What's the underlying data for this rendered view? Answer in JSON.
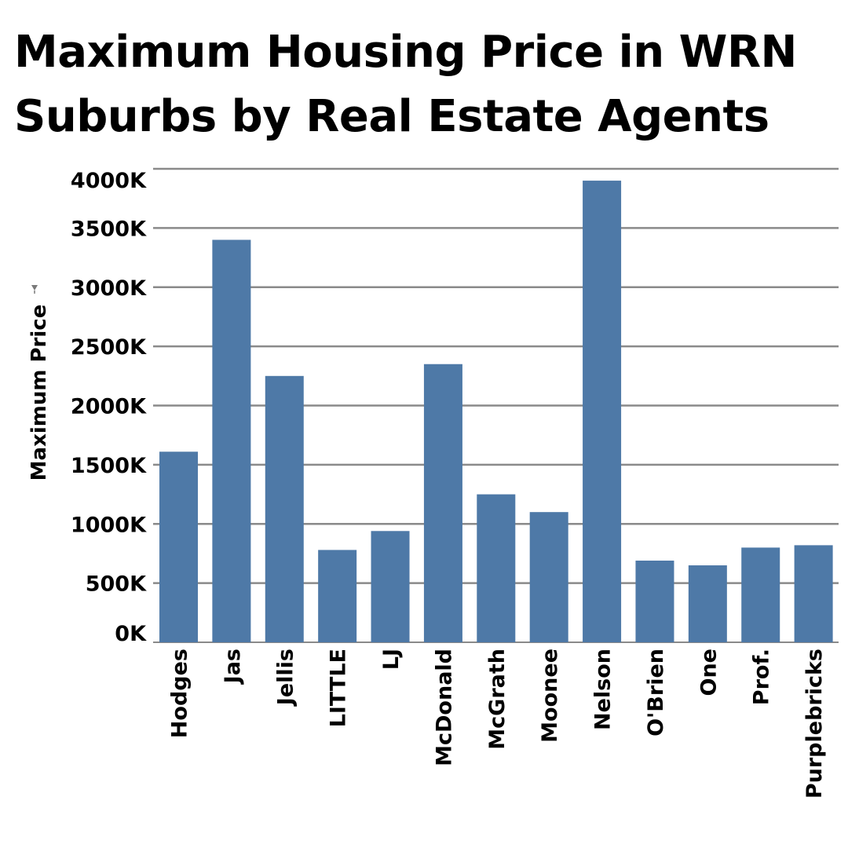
{
  "chart_data": {
    "type": "bar",
    "title_lines": [
      "Maximum Housing Price in WRN",
      "Suburbs by Real Estate Agents"
    ],
    "ylabel": "Maximum Price",
    "xlabel": "",
    "ylim": [
      0,
      4000
    ],
    "yticks": [
      0,
      500,
      1000,
      1500,
      2000,
      2500,
      3000,
      3500,
      4000
    ],
    "ytick_labels": [
      "0K",
      "500K",
      "1000K",
      "1500K",
      "2000K",
      "2500K",
      "3000K",
      "3500K",
      "4000K"
    ],
    "grid": true,
    "bar_color": "#4e79a7",
    "categories": [
      "Hodges",
      "Jas",
      "Jellis",
      "LITTLE",
      "LJ",
      "McDonald",
      "McGrath",
      "Moonee",
      "Nelson",
      "O'Brien",
      "One",
      "Prof.",
      "Purplebricks"
    ],
    "values": [
      1610,
      3400,
      2250,
      780,
      940,
      2350,
      1250,
      1100,
      3900,
      690,
      650,
      800,
      820
    ]
  }
}
